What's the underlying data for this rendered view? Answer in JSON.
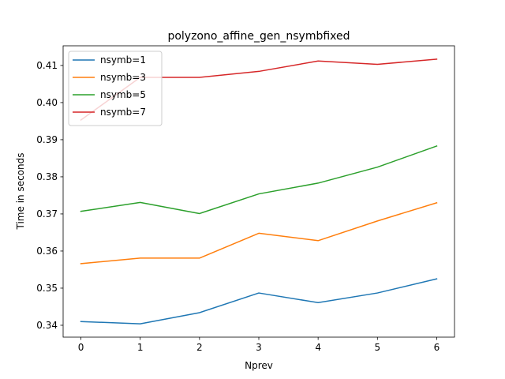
{
  "chart_data": {
    "type": "line",
    "title": "polyzono_affine_gen_nsymbfixed",
    "xlabel": "Nprev",
    "ylabel": "Time in seconds",
    "x": [
      0,
      1,
      2,
      3,
      4,
      5,
      6
    ],
    "xlim": [
      -0.3,
      6.3
    ],
    "ylim": [
      0.3368,
      0.4153
    ],
    "xticks": [
      0,
      1,
      2,
      3,
      4,
      5,
      6
    ],
    "yticks": [
      0.34,
      0.35,
      0.36,
      0.37,
      0.38,
      0.39,
      0.4,
      0.41
    ],
    "ytick_labels": [
      "0.34",
      "0.35",
      "0.36",
      "0.37",
      "0.38",
      "0.39",
      "0.40",
      "0.41"
    ],
    "grid": false,
    "legend_position": "top-left",
    "series": [
      {
        "name": "nsymb=1",
        "color": "#1f77b4",
        "values": [
          0.341,
          0.3404,
          0.3434,
          0.3487,
          0.3461,
          0.3487,
          0.3525
        ]
      },
      {
        "name": "nsymb=3",
        "color": "#ff7f0e",
        "values": [
          0.3566,
          0.3581,
          0.3581,
          0.3648,
          0.3628,
          0.3681,
          0.373
        ]
      },
      {
        "name": "nsymb=5",
        "color": "#2ca02c",
        "values": [
          0.3707,
          0.3731,
          0.3701,
          0.3754,
          0.3783,
          0.3826,
          0.3883
        ]
      },
      {
        "name": "nsymb=7",
        "color": "#d62728",
        "values": [
          0.3953,
          0.4068,
          0.4068,
          0.4084,
          0.4112,
          0.4103,
          0.4117
        ]
      }
    ]
  }
}
